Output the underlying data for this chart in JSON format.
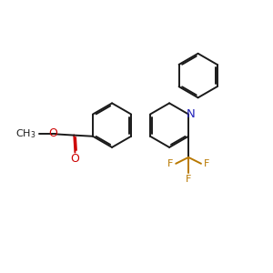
{
  "bg_color": "#ffffff",
  "bond_color": "#1a1a1a",
  "N_color": "#2222bb",
  "O_color": "#cc0000",
  "F_color": "#b87800",
  "lw": 1.4,
  "figsize": [
    3.0,
    3.0
  ],
  "dpi": 100,
  "xlim": [
    0,
    10
  ],
  "ylim": [
    0,
    10
  ]
}
